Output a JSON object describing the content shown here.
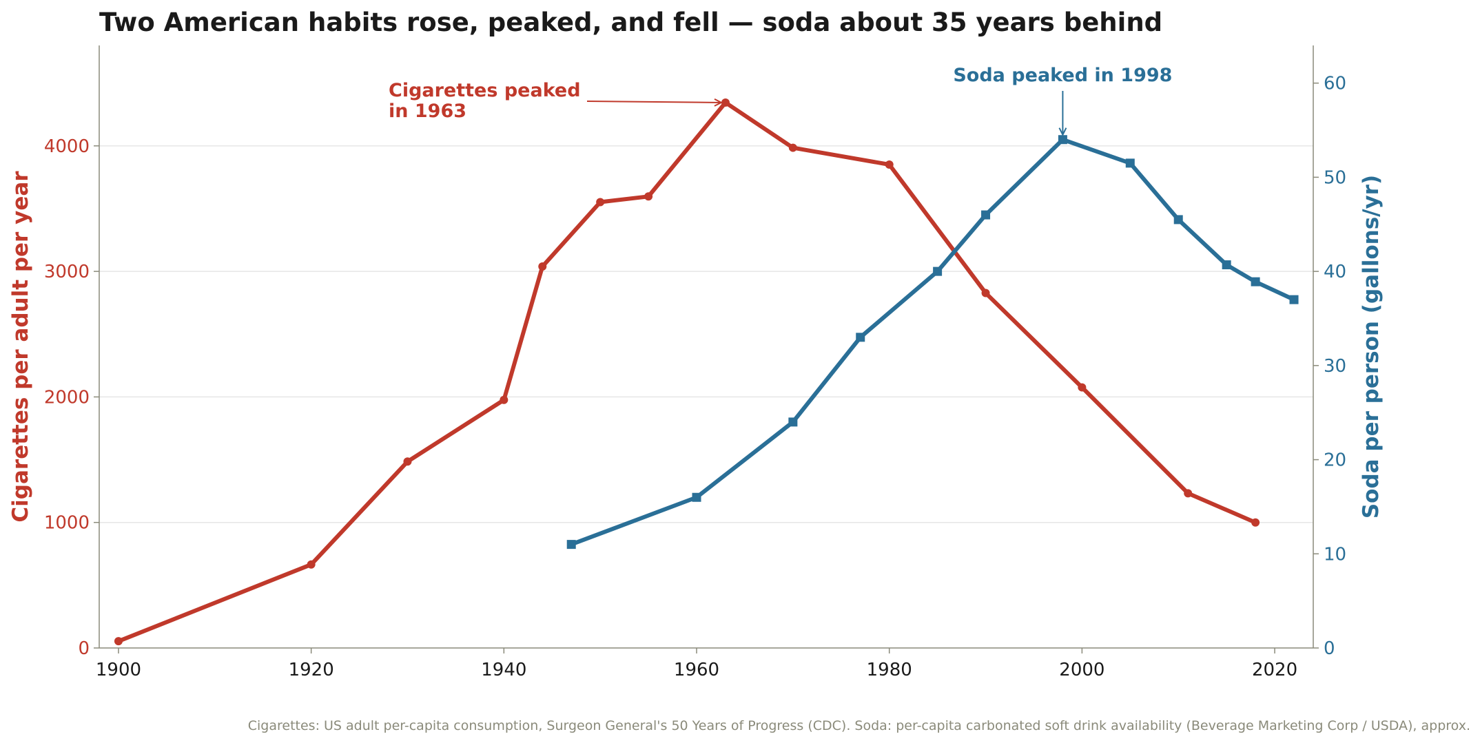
{
  "chart_data": {
    "type": "line",
    "title": "Two American habits rose, peaked, and fell — soda about 35 years behind",
    "xlim": [
      1898,
      2024
    ],
    "x_ticks": [
      1900,
      1920,
      1940,
      1960,
      1980,
      2000,
      2020
    ],
    "left_axis": {
      "label": "Cigarettes per adult per year",
      "ylim": [
        0,
        4800
      ],
      "ticks": [
        0,
        1000,
        2000,
        3000,
        4000
      ],
      "color": "#c0392b"
    },
    "right_axis": {
      "label": "Soda per person (gallons/yr)",
      "ylim": [
        0,
        64
      ],
      "ticks": [
        0,
        10,
        20,
        30,
        40,
        50,
        60
      ],
      "color": "#2a6f97"
    },
    "grid": "horizontal",
    "series": [
      {
        "name": "Cigarettes",
        "axis": "left",
        "color": "#c0392b",
        "marker": "circle",
        "x": [
          1900,
          1920,
          1930,
          1940,
          1944,
          1950,
          1955,
          1963,
          1970,
          1980,
          1990,
          2000,
          2011,
          2018
        ],
        "values": [
          54,
          665,
          1485,
          1976,
          3039,
          3552,
          3597,
          4345,
          3985,
          3851,
          2828,
          2076,
          1232,
          1000
        ]
      },
      {
        "name": "Soda",
        "axis": "right",
        "color": "#2a6f97",
        "marker": "square",
        "x": [
          1947,
          1960,
          1970,
          1977,
          1985,
          1990,
          1998,
          2005,
          2010,
          2015,
          2018,
          2022
        ],
        "values": [
          11,
          16,
          24,
          33,
          40,
          46,
          54,
          51.5,
          45.5,
          40.7,
          38.9,
          37
        ]
      }
    ],
    "annotations": [
      {
        "text": [
          "Cigarettes peaked",
          "in 1963"
        ],
        "series": 0,
        "x": 1963,
        "y": 4345
      },
      {
        "text": [
          "Soda peaked in 1998"
        ],
        "series": 1,
        "x": 1998,
        "y": 54
      }
    ],
    "source": "Cigarettes: US adult per-capita consumption, Surgeon General's 50 Years of Progress (CDC).  Soda: per-capita carbonated soft drink availability (Beverage Marketing Corp / USDA), approx."
  }
}
